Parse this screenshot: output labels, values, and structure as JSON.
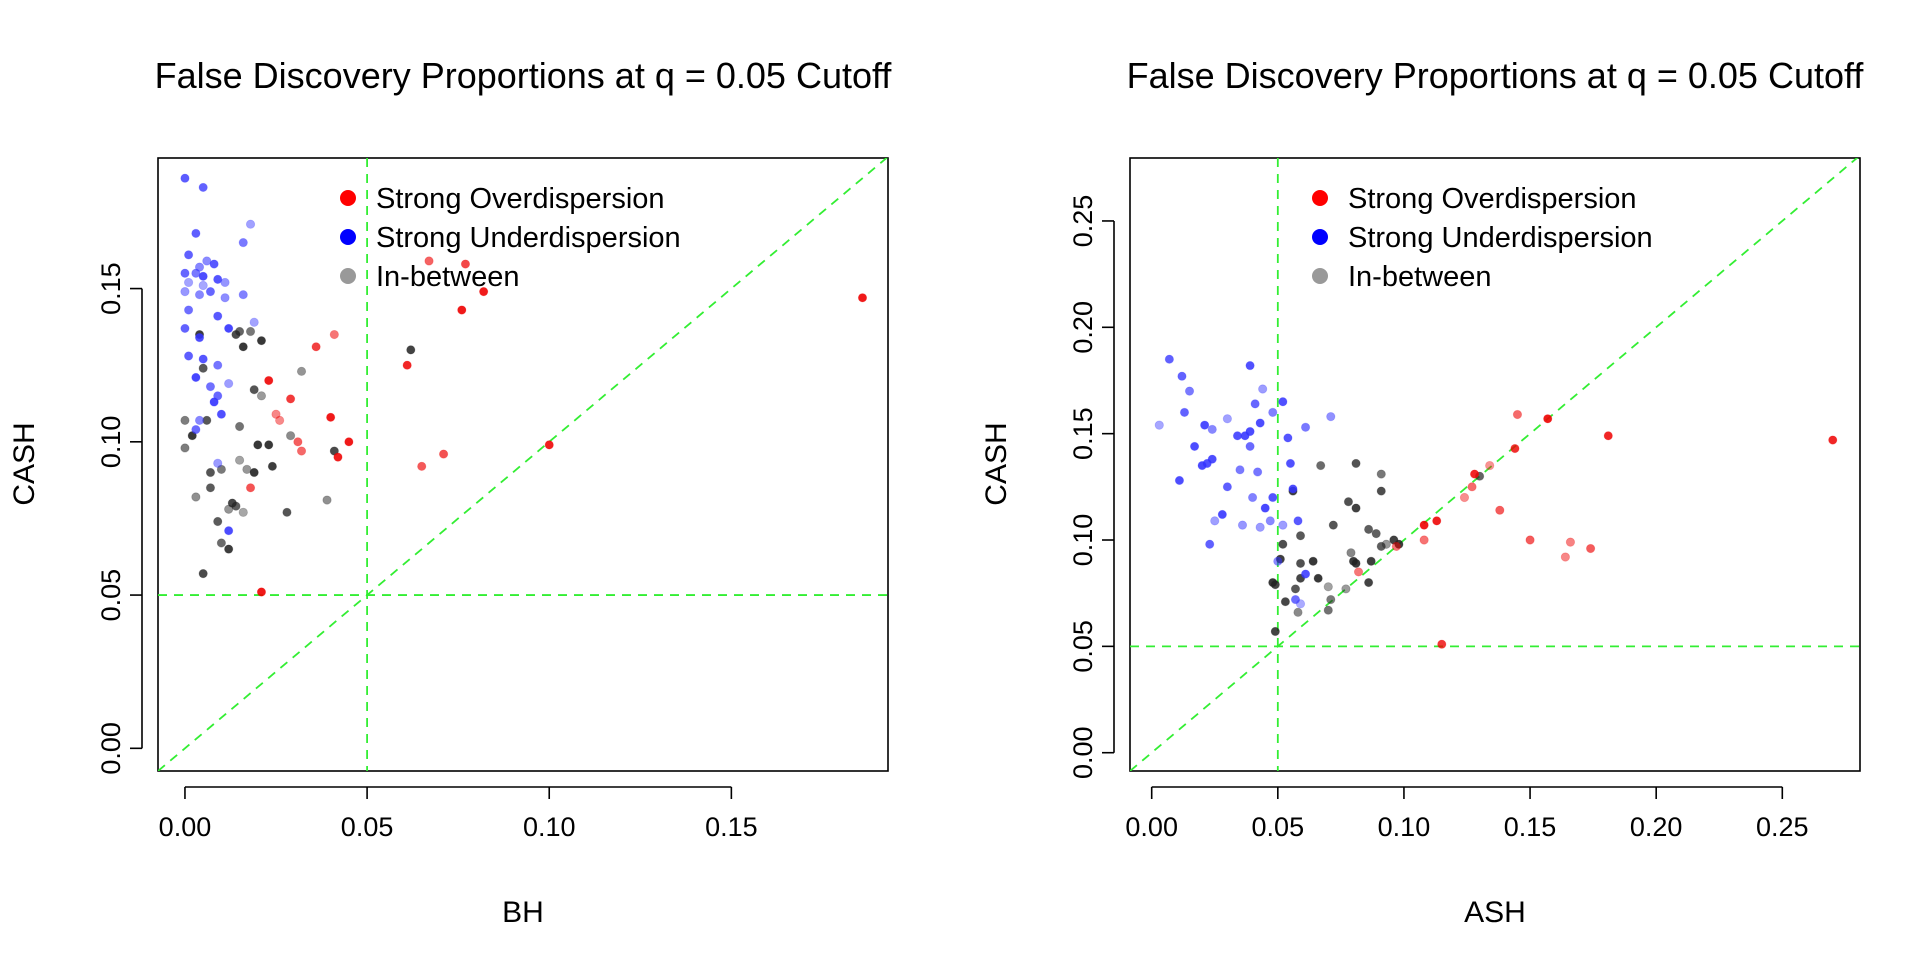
{
  "chart_data": [
    {
      "type": "scatter",
      "title": "False Discovery Proportions at q = 0.05 Cutoff",
      "xlabel": "BH",
      "ylabel": "CASH",
      "xlim": [
        -0.0074,
        0.193
      ],
      "ylim": [
        -0.0074,
        0.1926
      ],
      "xticks": [
        "0.00",
        "0.05",
        "0.10",
        "0.15"
      ],
      "yticks": [
        "0.00",
        "0.05",
        "0.10",
        "0.15"
      ],
      "reference_lines": {
        "vertical": 0.05,
        "horizontal": 0.05,
        "diagonal": true,
        "color": "#33ee33"
      },
      "legend": {
        "position": "top-center",
        "entries": [
          {
            "label": "Strong Overdispersion",
            "color": "#ff0000"
          },
          {
            "label": "Strong Underdispersion",
            "color": "#0000ff"
          },
          {
            "label": "In-between",
            "color": "#999999"
          }
        ]
      },
      "series": [
        {
          "name": "Strong Overdispersion",
          "color": "#ee0000",
          "points": [
            [
              0.186,
              0.147
            ],
            [
              0.1,
              0.099
            ],
            [
              0.082,
              0.149
            ],
            [
              0.077,
              0.158
            ],
            [
              0.076,
              0.143
            ],
            [
              0.067,
              0.159
            ],
            [
              0.071,
              0.096
            ],
            [
              0.065,
              0.092
            ],
            [
              0.061,
              0.125
            ],
            [
              0.045,
              0.1
            ],
            [
              0.042,
              0.095
            ],
            [
              0.041,
              0.135
            ],
            [
              0.04,
              0.108
            ],
            [
              0.036,
              0.131
            ],
            [
              0.032,
              0.097
            ],
            [
              0.031,
              0.1
            ],
            [
              0.029,
              0.114
            ],
            [
              0.026,
              0.107
            ],
            [
              0.025,
              0.109
            ],
            [
              0.023,
              0.12
            ],
            [
              0.018,
              0.085
            ],
            [
              0.021,
              0.051
            ]
          ]
        },
        {
          "name": "Strong Underdispersion",
          "color": "#3333ff",
          "points": [
            [
              0.0,
              0.186
            ],
            [
              0.005,
              0.183
            ],
            [
              0.018,
              0.171
            ],
            [
              0.003,
              0.168
            ],
            [
              0.016,
              0.165
            ],
            [
              0.001,
              0.161
            ],
            [
              0.004,
              0.157
            ],
            [
              0.006,
              0.159
            ],
            [
              0.008,
              0.158
            ],
            [
              0.0,
              0.155
            ],
            [
              0.003,
              0.155
            ],
            [
              0.005,
              0.154
            ],
            [
              0.001,
              0.152
            ],
            [
              0.005,
              0.151
            ],
            [
              0.009,
              0.153
            ],
            [
              0.011,
              0.152
            ],
            [
              0.0,
              0.149
            ],
            [
              0.004,
              0.148
            ],
            [
              0.007,
              0.149
            ],
            [
              0.011,
              0.147
            ],
            [
              0.016,
              0.148
            ],
            [
              0.001,
              0.143
            ],
            [
              0.009,
              0.141
            ],
            [
              0.019,
              0.139
            ],
            [
              0.0,
              0.137
            ],
            [
              0.004,
              0.134
            ],
            [
              0.012,
              0.137
            ],
            [
              0.001,
              0.128
            ],
            [
              0.005,
              0.127
            ],
            [
              0.009,
              0.125
            ],
            [
              0.003,
              0.121
            ],
            [
              0.007,
              0.118
            ],
            [
              0.009,
              0.115
            ],
            [
              0.012,
              0.119
            ],
            [
              0.008,
              0.113
            ],
            [
              0.004,
              0.107
            ],
            [
              0.01,
              0.109
            ],
            [
              0.003,
              0.104
            ],
            [
              0.009,
              0.093
            ],
            [
              0.012,
              0.071
            ]
          ]
        },
        {
          "name": "In-between",
          "color": "#222222",
          "points": [
            [
              0.015,
              0.136
            ],
            [
              0.018,
              0.136
            ],
            [
              0.014,
              0.135
            ],
            [
              0.004,
              0.135
            ],
            [
              0.021,
              0.133
            ],
            [
              0.016,
              0.131
            ],
            [
              0.062,
              0.13
            ],
            [
              0.005,
              0.124
            ],
            [
              0.032,
              0.123
            ],
            [
              0.019,
              0.117
            ],
            [
              0.021,
              0.115
            ],
            [
              0.0,
              0.107
            ],
            [
              0.006,
              0.107
            ],
            [
              0.015,
              0.105
            ],
            [
              0.002,
              0.102
            ],
            [
              0.029,
              0.102
            ],
            [
              0.02,
              0.099
            ],
            [
              0.023,
              0.099
            ],
            [
              0.041,
              0.097
            ],
            [
              0.0,
              0.098
            ],
            [
              0.015,
              0.094
            ],
            [
              0.007,
              0.09
            ],
            [
              0.01,
              0.091
            ],
            [
              0.019,
              0.09
            ],
            [
              0.017,
              0.091
            ],
            [
              0.024,
              0.092
            ],
            [
              0.007,
              0.085
            ],
            [
              0.003,
              0.082
            ],
            [
              0.013,
              0.08
            ],
            [
              0.014,
              0.079
            ],
            [
              0.012,
              0.078
            ],
            [
              0.016,
              0.077
            ],
            [
              0.028,
              0.077
            ],
            [
              0.039,
              0.081
            ],
            [
              0.009,
              0.074
            ],
            [
              0.01,
              0.067
            ],
            [
              0.012,
              0.065
            ],
            [
              0.005,
              0.057
            ]
          ]
        }
      ]
    },
    {
      "type": "scatter",
      "title": "False Discovery Proportions at q = 0.05 Cutoff",
      "xlabel": "ASH",
      "ylabel": "CASH",
      "xlim": [
        -0.0086,
        0.2808
      ],
      "ylim": [
        -0.0086,
        0.2796
      ],
      "xticks": [
        "0.00",
        "0.05",
        "0.10",
        "0.15",
        "0.20",
        "0.25"
      ],
      "yticks": [
        "0.00",
        "0.05",
        "0.10",
        "0.15",
        "0.20",
        "0.25"
      ],
      "reference_lines": {
        "vertical": 0.05,
        "horizontal": 0.05,
        "diagonal": true,
        "color": "#33ee33"
      },
      "legend": {
        "position": "top-center",
        "entries": [
          {
            "label": "Strong Overdispersion",
            "color": "#ff0000"
          },
          {
            "label": "Strong Underdispersion",
            "color": "#0000ff"
          },
          {
            "label": "In-between",
            "color": "#999999"
          }
        ]
      },
      "series": [
        {
          "name": "Strong Overdispersion",
          "color": "#ee0000",
          "points": [
            [
              0.27,
              0.147
            ],
            [
              0.181,
              0.149
            ],
            [
              0.174,
              0.096
            ],
            [
              0.166,
              0.099
            ],
            [
              0.164,
              0.092
            ],
            [
              0.157,
              0.157
            ],
            [
              0.15,
              0.1
            ],
            [
              0.145,
              0.159
            ],
            [
              0.144,
              0.143
            ],
            [
              0.138,
              0.114
            ],
            [
              0.134,
              0.135
            ],
            [
              0.128,
              0.131
            ],
            [
              0.127,
              0.125
            ],
            [
              0.124,
              0.12
            ],
            [
              0.113,
              0.109
            ],
            [
              0.108,
              0.107
            ],
            [
              0.108,
              0.1
            ],
            [
              0.097,
              0.097
            ],
            [
              0.082,
              0.085
            ],
            [
              0.115,
              0.051
            ]
          ]
        },
        {
          "name": "Strong Underdispersion",
          "color": "#3333ff",
          "points": [
            [
              0.007,
              0.185
            ],
            [
              0.012,
              0.177
            ],
            [
              0.039,
              0.182
            ],
            [
              0.015,
              0.17
            ],
            [
              0.044,
              0.171
            ],
            [
              0.041,
              0.164
            ],
            [
              0.052,
              0.165
            ],
            [
              0.013,
              0.16
            ],
            [
              0.048,
              0.16
            ],
            [
              0.071,
              0.158
            ],
            [
              0.003,
              0.154
            ],
            [
              0.021,
              0.154
            ],
            [
              0.024,
              0.152
            ],
            [
              0.03,
              0.157
            ],
            [
              0.061,
              0.153
            ],
            [
              0.034,
              0.149
            ],
            [
              0.037,
              0.149
            ],
            [
              0.039,
              0.151
            ],
            [
              0.043,
              0.155
            ],
            [
              0.054,
              0.148
            ],
            [
              0.039,
              0.144
            ],
            [
              0.017,
              0.144
            ],
            [
              0.02,
              0.135
            ],
            [
              0.024,
              0.138
            ],
            [
              0.022,
              0.136
            ],
            [
              0.035,
              0.133
            ],
            [
              0.042,
              0.132
            ],
            [
              0.055,
              0.136
            ],
            [
              0.011,
              0.128
            ],
            [
              0.03,
              0.125
            ],
            [
              0.056,
              0.124
            ],
            [
              0.048,
              0.12
            ],
            [
              0.04,
              0.12
            ],
            [
              0.045,
              0.115
            ],
            [
              0.028,
              0.112
            ],
            [
              0.025,
              0.109
            ],
            [
              0.047,
              0.109
            ],
            [
              0.036,
              0.107
            ],
            [
              0.052,
              0.107
            ],
            [
              0.043,
              0.106
            ],
            [
              0.058,
              0.109
            ],
            [
              0.023,
              0.098
            ],
            [
              0.05,
              0.09
            ],
            [
              0.061,
              0.084
            ],
            [
              0.057,
              0.072
            ],
            [
              0.059,
              0.07
            ]
          ]
        },
        {
          "name": "In-between",
          "color": "#222222",
          "points": [
            [
              0.067,
              0.135
            ],
            [
              0.081,
              0.136
            ],
            [
              0.091,
              0.131
            ],
            [
              0.13,
              0.13
            ],
            [
              0.056,
              0.123
            ],
            [
              0.091,
              0.123
            ],
            [
              0.078,
              0.118
            ],
            [
              0.081,
              0.115
            ],
            [
              0.072,
              0.107
            ],
            [
              0.086,
              0.105
            ],
            [
              0.089,
              0.103
            ],
            [
              0.059,
              0.102
            ],
            [
              0.052,
              0.098
            ],
            [
              0.093,
              0.098
            ],
            [
              0.091,
              0.097
            ],
            [
              0.096,
              0.1
            ],
            [
              0.098,
              0.098
            ],
            [
              0.079,
              0.094
            ],
            [
              0.08,
              0.09
            ],
            [
              0.064,
              0.09
            ],
            [
              0.059,
              0.089
            ],
            [
              0.081,
              0.089
            ],
            [
              0.087,
              0.09
            ],
            [
              0.051,
              0.091
            ],
            [
              0.059,
              0.082
            ],
            [
              0.066,
              0.082
            ],
            [
              0.086,
              0.08
            ],
            [
              0.048,
              0.08
            ],
            [
              0.049,
              0.079
            ],
            [
              0.07,
              0.078
            ],
            [
              0.057,
              0.077
            ],
            [
              0.077,
              0.077
            ],
            [
              0.071,
              0.072
            ],
            [
              0.058,
              0.066
            ],
            [
              0.07,
              0.067
            ],
            [
              0.049,
              0.057
            ],
            [
              0.053,
              0.071
            ]
          ]
        }
      ]
    }
  ]
}
